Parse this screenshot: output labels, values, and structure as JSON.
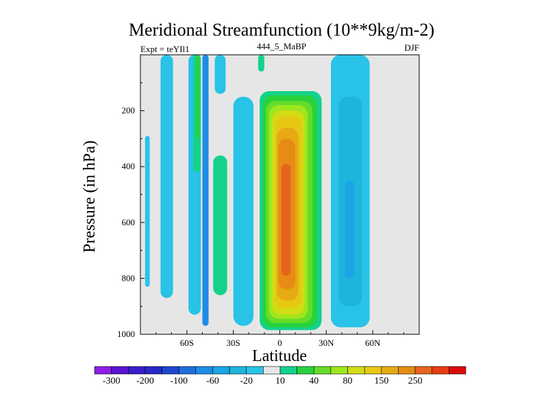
{
  "chart_data": {
    "type": "heatmap",
    "title": "Meridional Streamfunction (10**9kg/m-2)",
    "subtitle_left": "Expt = teYIl1",
    "subtitle_center": "444_5_MaBP",
    "subtitle_right": "DJF",
    "xlabel": "Latitude",
    "ylabel": "Pressure (in hPa)",
    "xlim": [
      -90,
      90
    ],
    "ylim": [
      1000,
      0
    ],
    "x_ticks": [
      -60,
      -30,
      0,
      30,
      60
    ],
    "x_tick_labels": [
      "60S",
      "30S",
      "0",
      "30N",
      "60N"
    ],
    "y_ticks": [
      200,
      400,
      600,
      800,
      1000
    ],
    "y_tick_labels": [
      "200",
      "400",
      "600",
      "800",
      "1000"
    ],
    "colorbar": {
      "colors": [
        "#8c1ee6",
        "#5a14d2",
        "#3c1ec8",
        "#2828c8",
        "#1e46d2",
        "#1e6edc",
        "#1e8ce6",
        "#19a5e6",
        "#1eb4dc",
        "#28c3e6",
        "#e6e6e6",
        "#14d28c",
        "#28d23c",
        "#64dc28",
        "#a0e61e",
        "#d2dc14",
        "#e6c814",
        "#e6aa14",
        "#e68c14",
        "#e6641e",
        "#e63c14",
        "#dc0a0a"
      ],
      "labels": [
        "-300",
        "-200",
        "-100",
        "-60",
        "-20",
        "10",
        "40",
        "80",
        "150",
        "250"
      ]
    },
    "features": [
      {
        "name": "hadley-cell-positive",
        "levels": [
          {
            "color": "#14d28c",
            "x": [
              -13,
              27
            ],
            "p": [
              130,
              985
            ]
          },
          {
            "color": "#28d23c",
            "x": [
              -11,
              24
            ],
            "p": [
              145,
              975
            ]
          },
          {
            "color": "#64dc28",
            "x": [
              -9,
              21
            ],
            "p": [
              165,
              960
            ]
          },
          {
            "color": "#a0e61e",
            "x": [
              -7,
              18
            ],
            "p": [
              180,
              945
            ]
          },
          {
            "color": "#d2dc14",
            "x": [
              -5,
              16
            ],
            "p": [
              200,
              930
            ]
          },
          {
            "color": "#e6c814",
            "x": [
              -3,
              14
            ],
            "p": [
              220,
              905
            ]
          },
          {
            "color": "#e6aa14",
            "x": [
              -2,
              12
            ],
            "p": [
              260,
              880
            ]
          },
          {
            "color": "#e68c14",
            "x": [
              -1,
              10
            ],
            "p": [
              300,
              840
            ]
          },
          {
            "color": "#e6641e",
            "x": [
              1,
              7
            ],
            "p": [
              390,
              790
            ]
          },
          {
            "color": "#e6641e",
            "x": [
              2,
              6
            ],
            "p": [
              460,
              760
            ]
          }
        ]
      },
      {
        "name": "ferrel-cell-negative",
        "levels": [
          {
            "color": "#28c3e6",
            "x": [
              33,
              58
            ],
            "p": [
              0,
              975
            ]
          },
          {
            "color": "#1eb4dc",
            "x": [
              38,
              53
            ],
            "p": [
              150,
              900
            ]
          },
          {
            "color": "#19a5e6",
            "x": [
              42,
              48
            ],
            "p": [
              450,
              800
            ]
          }
        ]
      },
      {
        "name": "southern-negative-bands",
        "levels": [
          {
            "color": "#28c3e6",
            "x": [
              -87,
              -84
            ],
            "p": [
              290,
              830
            ]
          },
          {
            "color": "#28c3e6",
            "x": [
              -77,
              -69
            ],
            "p": [
              0,
              870
            ]
          },
          {
            "color": "#28c3e6",
            "x": [
              -59,
              -51
            ],
            "p": [
              0,
              930
            ]
          },
          {
            "color": "#1e8ce6",
            "x": [
              -50,
              -46
            ],
            "p": [
              0,
              970
            ]
          },
          {
            "color": "#28c3e6",
            "x": [
              -42,
              -35
            ],
            "p": [
              0,
              140
            ]
          },
          {
            "color": "#28c3e6",
            "x": [
              -30,
              -17
            ],
            "p": [
              150,
              970
            ]
          }
        ]
      },
      {
        "name": "southern-positive-bands",
        "levels": [
          {
            "color": "#14d28c",
            "x": [
              -56,
              -51
            ],
            "p": [
              0,
              420
            ]
          },
          {
            "color": "#28d23c",
            "x": [
              -54,
              -52
            ],
            "p": [
              0,
              300
            ]
          },
          {
            "color": "#14d28c",
            "x": [
              -43,
              -34
            ],
            "p": [
              360,
              860
            ]
          },
          {
            "color": "#14d28c",
            "x": [
              -14,
              -10
            ],
            "p": [
              0,
              60
            ]
          }
        ]
      }
    ]
  }
}
